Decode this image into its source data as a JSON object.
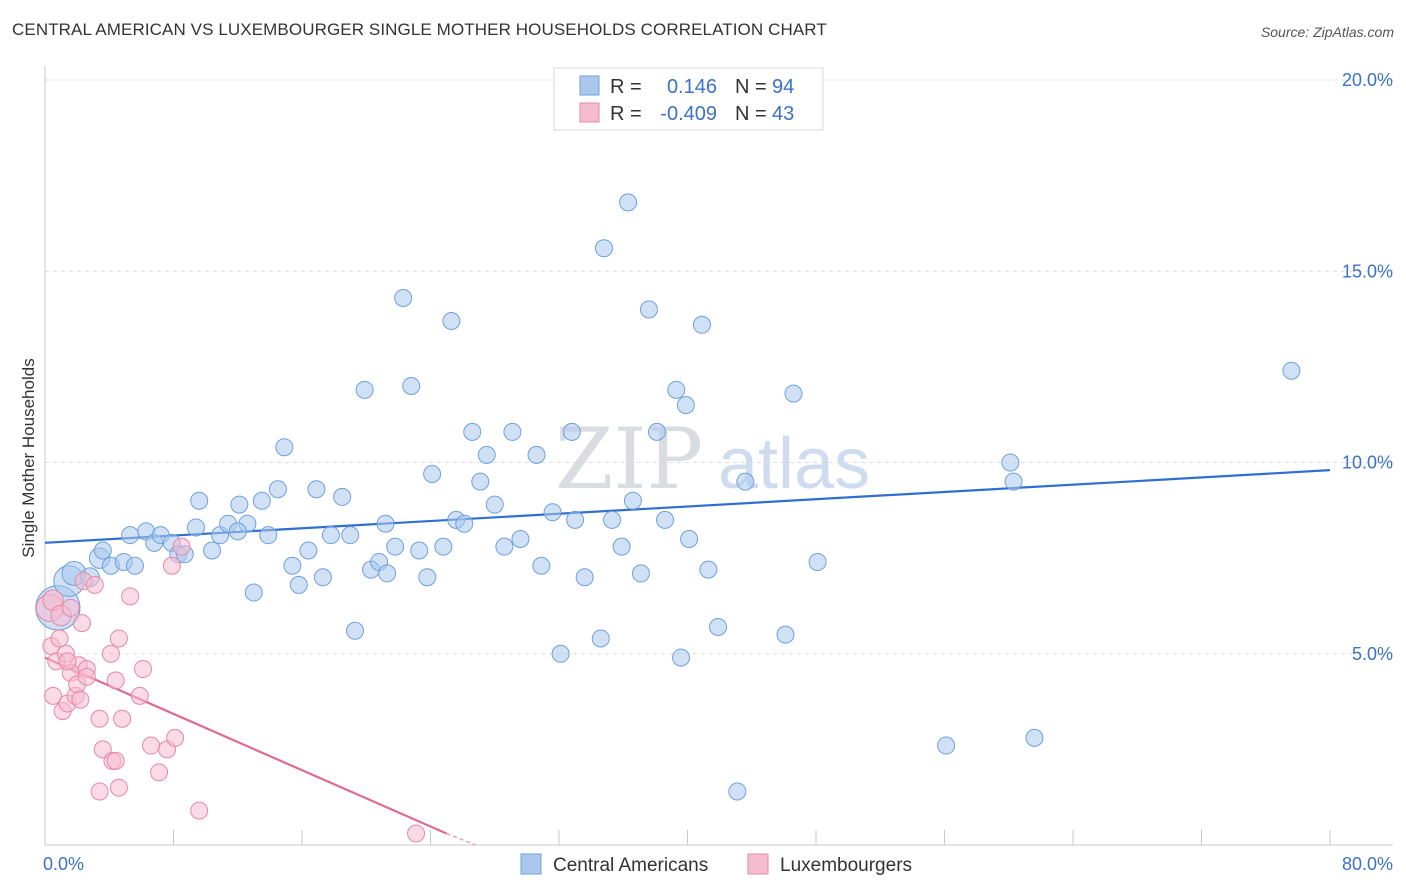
{
  "title": "CENTRAL AMERICAN VS LUXEMBOURGER SINGLE MOTHER HOUSEHOLDS CORRELATION CHART",
  "source": "Source: ZipAtlas.com",
  "watermark": {
    "zip": "ZIP",
    "atlas": "atlas"
  },
  "chart_data": {
    "type": "scatter",
    "title": "CENTRAL AMERICAN VS LUXEMBOURGER SINGLE MOTHER HOUSEHOLDS CORRELATION CHART",
    "xlabel": "",
    "ylabel": "Single Mother Households",
    "xlim": [
      0,
      80
    ],
    "ylim": [
      0,
      20
    ],
    "x_tick_labels": [
      "0.0%",
      "80.0%"
    ],
    "y_ticks": [
      5,
      10,
      15,
      20
    ],
    "y_tick_labels": [
      "5.0%",
      "10.0%",
      "15.0%",
      "20.0%"
    ],
    "legend": {
      "position": "top-center",
      "entries": [
        {
          "r_label": "R =",
          "r_value": "0.146",
          "n_label": "N =",
          "n_value": "94"
        },
        {
          "r_label": "R =",
          "r_value": "-0.409",
          "n_label": "N =",
          "n_value": "43"
        }
      ]
    },
    "series": [
      {
        "name": "Central Americans",
        "color": "#6fa0dc",
        "fill": "#aac8ee",
        "line_color": "#2f6fcf",
        "trend": {
          "x0": 0,
          "y0": 7.9,
          "x1": 80,
          "y1": 9.8
        },
        "points": [
          [
            0.8,
            6.2,
            26
          ],
          [
            1.5,
            6.9,
            18
          ],
          [
            1.8,
            7.1,
            14
          ],
          [
            2.8,
            7.0,
            11
          ],
          [
            3.4,
            7.5,
            12
          ],
          [
            3.6,
            7.7,
            10
          ],
          [
            4.1,
            7.3,
            10
          ],
          [
            4.9,
            7.4,
            10
          ],
          [
            5.3,
            8.1,
            10
          ],
          [
            5.6,
            7.3,
            10
          ],
          [
            6.3,
            8.2,
            10
          ],
          [
            6.8,
            7.9,
            10
          ],
          [
            7.2,
            8.1,
            10
          ],
          [
            7.9,
            7.9,
            10
          ],
          [
            8.3,
            7.6,
            10
          ],
          [
            8.7,
            7.6,
            10
          ],
          [
            9.4,
            8.3,
            10
          ],
          [
            9.6,
            9.0,
            10
          ],
          [
            10.4,
            7.7,
            10
          ],
          [
            10.9,
            8.1,
            10
          ],
          [
            11.4,
            8.4,
            10
          ],
          [
            12.1,
            8.9,
            10
          ],
          [
            12.6,
            8.4,
            10
          ],
          [
            13.0,
            6.6,
            10
          ],
          [
            13.5,
            9.0,
            10
          ],
          [
            13.9,
            8.1,
            10
          ],
          [
            14.5,
            9.3,
            10
          ],
          [
            14.9,
            10.4,
            10
          ],
          [
            15.4,
            7.3,
            10
          ],
          [
            15.8,
            6.8,
            10
          ],
          [
            16.4,
            7.7,
            10
          ],
          [
            16.9,
            9.3,
            10
          ],
          [
            17.3,
            7.0,
            10
          ],
          [
            17.8,
            8.1,
            10
          ],
          [
            18.5,
            9.1,
            10
          ],
          [
            19.0,
            8.1,
            10
          ],
          [
            19.3,
            5.6,
            10
          ],
          [
            20.3,
            7.2,
            10
          ],
          [
            20.8,
            7.4,
            10
          ],
          [
            21.3,
            7.1,
            10
          ],
          [
            21.8,
            7.8,
            10
          ],
          [
            22.3,
            14.3,
            10
          ],
          [
            22.8,
            12.0,
            10
          ],
          [
            23.3,
            7.7,
            10
          ],
          [
            23.8,
            7.0,
            10
          ],
          [
            24.1,
            9.7,
            10
          ],
          [
            24.8,
            7.8,
            10
          ],
          [
            25.3,
            13.7,
            10
          ],
          [
            25.6,
            8.5,
            10
          ],
          [
            26.1,
            8.4,
            10
          ],
          [
            26.6,
            10.8,
            10
          ],
          [
            27.1,
            9.5,
            10
          ],
          [
            27.5,
            10.2,
            10
          ],
          [
            28.0,
            8.9,
            10
          ],
          [
            28.6,
            7.8,
            10
          ],
          [
            29.1,
            10.8,
            10
          ],
          [
            29.6,
            8.0,
            10
          ],
          [
            30.6,
            10.2,
            10
          ],
          [
            30.9,
            7.3,
            10
          ],
          [
            31.6,
            8.7,
            10
          ],
          [
            32.1,
            5.0,
            10
          ],
          [
            32.8,
            10.8,
            10
          ],
          [
            33.0,
            8.5,
            10
          ],
          [
            33.6,
            7.0,
            10
          ],
          [
            34.6,
            5.4,
            10
          ],
          [
            34.8,
            15.6,
            10
          ],
          [
            35.3,
            8.5,
            10
          ],
          [
            35.9,
            7.8,
            10
          ],
          [
            36.3,
            16.8,
            10
          ],
          [
            36.6,
            9.0,
            10
          ],
          [
            37.1,
            7.1,
            10
          ],
          [
            37.6,
            14.0,
            10
          ],
          [
            38.1,
            10.8,
            10
          ],
          [
            38.6,
            8.5,
            10
          ],
          [
            39.3,
            11.9,
            10
          ],
          [
            39.6,
            4.9,
            10
          ],
          [
            39.9,
            11.5,
            10
          ],
          [
            40.9,
            13.6,
            10
          ],
          [
            41.3,
            7.2,
            10
          ],
          [
            41.9,
            5.7,
            10
          ],
          [
            43.1,
            1.4,
            10
          ],
          [
            43.6,
            9.5,
            10
          ],
          [
            46.1,
            5.5,
            10
          ],
          [
            46.6,
            11.8,
            10
          ],
          [
            48.1,
            7.4,
            10
          ],
          [
            56.1,
            2.6,
            10
          ],
          [
            60.1,
            10.0,
            10
          ],
          [
            60.3,
            9.5,
            10
          ],
          [
            61.6,
            2.8,
            10
          ],
          [
            77.6,
            12.4,
            10
          ],
          [
            19.9,
            11.9,
            10
          ],
          [
            12.0,
            8.2,
            10
          ],
          [
            40.1,
            8.0,
            10
          ],
          [
            21.2,
            8.4,
            10
          ]
        ]
      },
      {
        "name": "Luxembourgers",
        "color": "#e887a8",
        "fill": "#f5bcd0",
        "line_color": "#df6a93",
        "trend": {
          "x0": 0,
          "y0": 4.9,
          "x1": 25,
          "y1": 0.3
        },
        "points": [
          [
            0.3,
            6.2,
            16
          ],
          [
            0.5,
            6.4,
            12
          ],
          [
            1.0,
            6.0,
            12
          ],
          [
            1.6,
            6.2,
            10
          ],
          [
            2.4,
            6.9,
            10
          ],
          [
            0.4,
            5.2,
            10
          ],
          [
            0.7,
            4.8,
            10
          ],
          [
            1.3,
            5.0,
            10
          ],
          [
            2.1,
            4.7,
            10
          ],
          [
            2.6,
            4.6,
            10
          ],
          [
            0.5,
            3.9,
            10
          ],
          [
            1.1,
            3.5,
            10
          ],
          [
            1.4,
            3.7,
            10
          ],
          [
            1.9,
            3.9,
            10
          ],
          [
            3.4,
            3.3,
            10
          ],
          [
            3.6,
            2.5,
            10
          ],
          [
            4.2,
            2.2,
            10
          ],
          [
            4.6,
            1.5,
            10
          ],
          [
            3.4,
            1.4,
            10
          ],
          [
            4.1,
            5.0,
            10
          ],
          [
            4.6,
            5.4,
            10
          ],
          [
            4.8,
            3.3,
            10
          ],
          [
            5.3,
            6.5,
            10
          ],
          [
            6.1,
            4.6,
            10
          ],
          [
            6.6,
            2.6,
            10
          ],
          [
            7.1,
            1.9,
            10
          ],
          [
            7.6,
            2.5,
            10
          ],
          [
            8.1,
            2.8,
            10
          ],
          [
            8.5,
            7.8,
            10
          ],
          [
            7.9,
            7.3,
            10
          ],
          [
            9.6,
            0.9,
            10
          ],
          [
            23.1,
            0.3,
            10
          ],
          [
            2.3,
            5.8,
            10
          ],
          [
            0.9,
            5.4,
            10
          ],
          [
            1.6,
            4.5,
            10
          ],
          [
            2.0,
            4.2,
            10
          ],
          [
            2.6,
            4.4,
            10
          ],
          [
            3.1,
            6.8,
            10
          ],
          [
            4.4,
            4.3,
            10
          ],
          [
            5.9,
            3.9,
            10
          ],
          [
            4.4,
            2.2,
            10
          ],
          [
            1.4,
            4.8,
            10
          ],
          [
            2.2,
            3.8,
            10
          ]
        ]
      }
    ]
  }
}
